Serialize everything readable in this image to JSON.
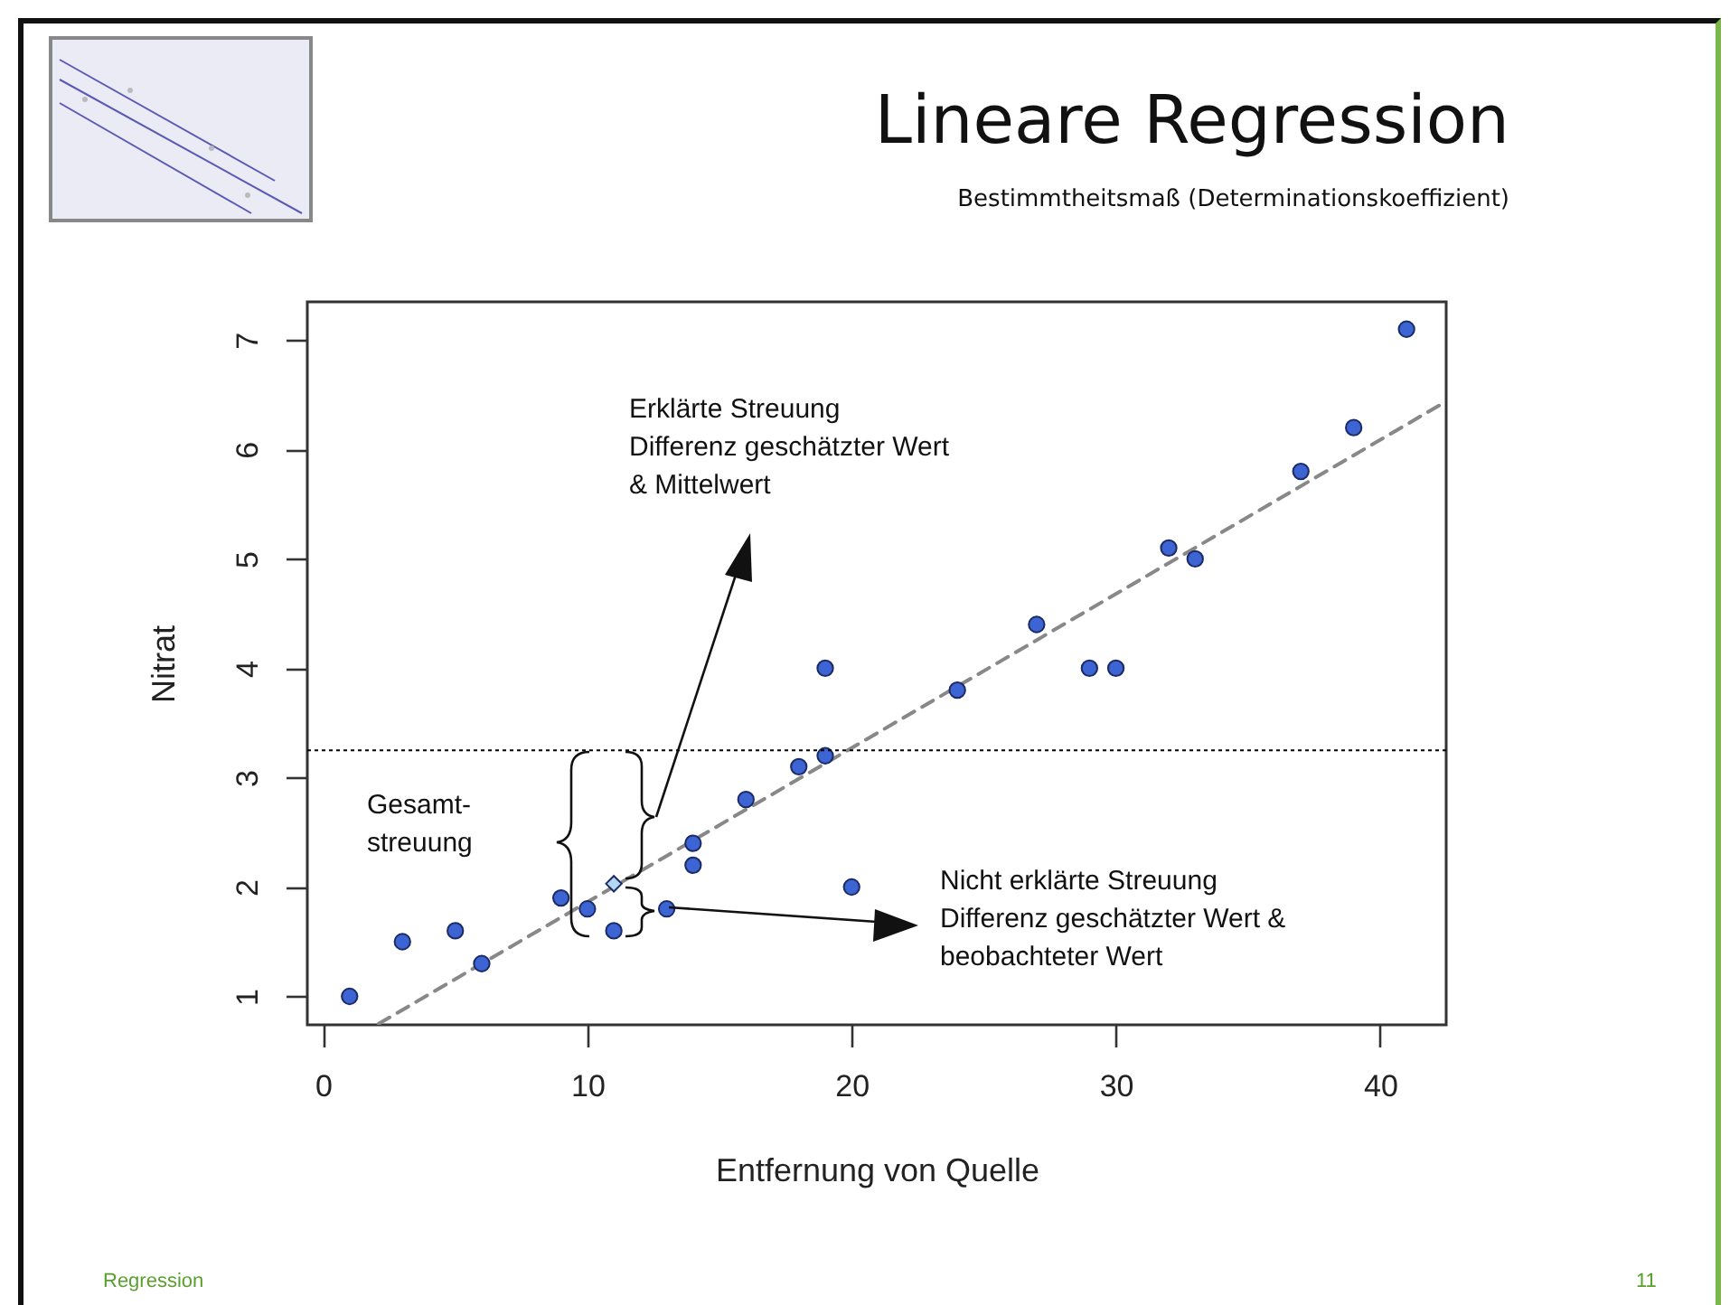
{
  "chart_data": {
    "type": "scatter",
    "title": "Lineare Regression",
    "subtitle": "Bestimmtheitsmaß (Determinationskoeffizient)",
    "xlabel": "Entfernung von Quelle",
    "ylabel": "Nitrat",
    "annotations": [
      "Erklärte Streuung\nDifferenz geschätzter Wert\n& Mittelwert",
      "Gesamt-\nstreuung",
      "Nicht erklärte Streuung\nDifferenz geschätzter Wert &\nbeobachteter Wert",
      "Regression",
      "11"
    ],
    "xlim": [
      -0.6,
      42.5
    ],
    "ylim": [
      0.74,
      7.35
    ],
    "xticks": [
      0,
      10,
      20,
      30,
      40
    ],
    "yticks": [
      1,
      2,
      3,
      4,
      5,
      6,
      7
    ],
    "ref_lines": [
      {
        "axis": "y",
        "value": 3.25,
        "color": "#000000",
        "line_style": "dotted"
      }
    ],
    "series": [
      {
        "type": "line",
        "color": "#888888",
        "line_style": "dashed",
        "marker": "none",
        "x": [
          2.1,
          42.5
        ],
        "values": [
          0.75,
          6.44
        ]
      },
      {
        "color": "#3c64d2",
        "marker": "circle",
        "x": [
          1,
          3,
          5,
          6,
          9,
          10,
          11,
          13,
          14,
          14,
          16,
          18,
          19,
          19,
          20,
          24,
          27,
          29,
          30,
          32,
          33,
          37,
          39,
          41
        ],
        "values": [
          1,
          1.5,
          1.6,
          1.3,
          1.9,
          1.8,
          1.6,
          1.8,
          2.4,
          2.2,
          2.8,
          3.1,
          3.2,
          4,
          2,
          3.8,
          4.4,
          4,
          4,
          5.1,
          5,
          5.8,
          6.2,
          7.1
        ]
      },
      {
        "color": "#b4d8f4",
        "marker": "diamond",
        "x": [
          11
        ],
        "values": [
          2.03
        ]
      }
    ]
  }
}
